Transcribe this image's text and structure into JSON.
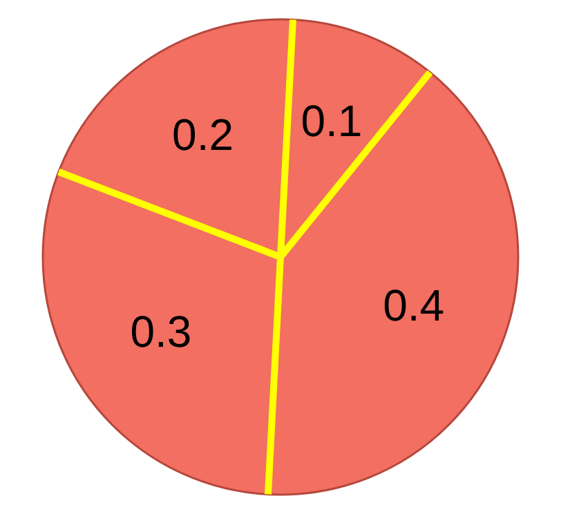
{
  "chart_data": {
    "type": "pie",
    "categories": [
      null,
      null,
      null,
      null
    ],
    "values": [
      0.1,
      0.4,
      0.3,
      0.2
    ],
    "colors": [
      "#f26f61",
      "#f26f61",
      "#f26f61",
      "#f26f61"
    ],
    "data_labels": true
  }
}
